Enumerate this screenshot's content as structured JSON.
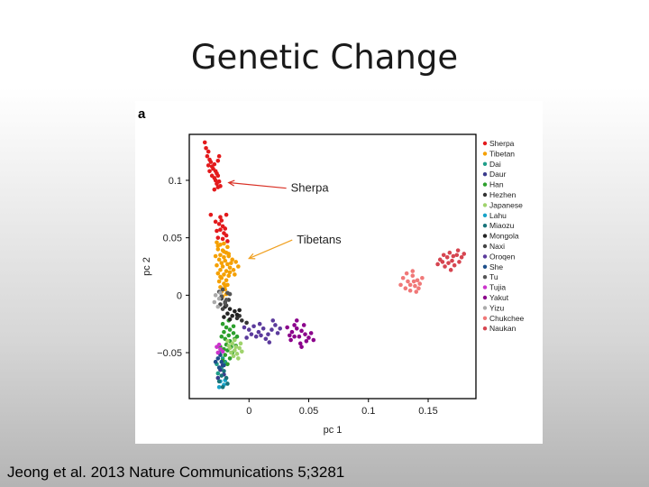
{
  "slide": {
    "title": "Genetic Change",
    "citation": "Jeong et al. 2013 Nature Communications 5;3281"
  },
  "chart_data": {
    "type": "scatter",
    "panel_label": "a",
    "xlabel": "pc 1",
    "ylabel": "pc 2",
    "xlim": [
      -0.05,
      0.19
    ],
    "ylim": [
      -0.09,
      0.14
    ],
    "xticks": [
      0,
      0.05,
      0.1,
      0.15
    ],
    "xtick_labels": [
      "0",
      "0.05",
      "0.1",
      "0.15"
    ],
    "yticks": [
      -0.05,
      0,
      0.05,
      0.1
    ],
    "ytick_labels": [
      "−0.05",
      "0",
      "0.05",
      "0.1"
    ],
    "grid": false,
    "legend_position": "right",
    "annotations": [
      {
        "text": "Sherpa",
        "at": [
          0.035,
          0.09
        ],
        "arrow_to": [
          -0.017,
          0.098
        ]
      },
      {
        "text": "Tibetans",
        "at": [
          0.04,
          0.045
        ],
        "arrow_to": [
          0.0,
          0.032
        ]
      }
    ],
    "series": [
      {
        "name": "Sherpa",
        "color": "#e31a1c",
        "points": [
          [
            -0.037,
            0.133
          ],
          [
            -0.036,
            0.128
          ],
          [
            -0.034,
            0.125
          ],
          [
            -0.035,
            0.121
          ],
          [
            -0.033,
            0.118
          ],
          [
            -0.032,
            0.116
          ],
          [
            -0.034,
            0.113
          ],
          [
            -0.031,
            0.112
          ],
          [
            -0.029,
            0.114
          ],
          [
            -0.03,
            0.11
          ],
          [
            -0.033,
            0.108
          ],
          [
            -0.028,
            0.108
          ],
          [
            -0.027,
            0.106
          ],
          [
            -0.031,
            0.104
          ],
          [
            -0.029,
            0.102
          ],
          [
            -0.026,
            0.104
          ],
          [
            -0.028,
            0.1
          ],
          [
            -0.025,
            0.099
          ],
          [
            -0.027,
            0.097
          ],
          [
            -0.026,
            0.094
          ],
          [
            -0.029,
            0.092
          ],
          [
            -0.024,
            0.095
          ],
          [
            -0.025,
            0.121
          ],
          [
            -0.026,
            0.117
          ],
          [
            -0.032,
            0.07
          ],
          [
            -0.028,
            0.064
          ],
          [
            -0.025,
            0.062
          ],
          [
            -0.023,
            0.065
          ],
          [
            -0.022,
            0.06
          ],
          [
            -0.019,
            0.07
          ],
          [
            -0.024,
            0.057
          ],
          [
            -0.021,
            0.054
          ],
          [
            -0.027,
            0.056
          ],
          [
            -0.019,
            0.052
          ],
          [
            -0.026,
            0.05
          ],
          [
            -0.022,
            0.049
          ],
          [
            -0.018,
            0.047
          ],
          [
            -0.024,
            0.068
          ],
          [
            -0.02,
            0.058
          ]
        ]
      },
      {
        "name": "Tibetan",
        "color": "#f5a000",
        "points": [
          [
            -0.027,
            0.046
          ],
          [
            -0.024,
            0.044
          ],
          [
            -0.021,
            0.045
          ],
          [
            -0.018,
            0.042
          ],
          [
            -0.026,
            0.04
          ],
          [
            -0.022,
            0.039
          ],
          [
            -0.019,
            0.037
          ],
          [
            -0.024,
            0.035
          ],
          [
            -0.028,
            0.034
          ],
          [
            -0.021,
            0.033
          ],
          [
            -0.017,
            0.034
          ],
          [
            -0.025,
            0.031
          ],
          [
            -0.02,
            0.03
          ],
          [
            -0.014,
            0.031
          ],
          [
            -0.011,
            0.029
          ],
          [
            -0.023,
            0.028
          ],
          [
            -0.018,
            0.027
          ],
          [
            -0.027,
            0.026
          ],
          [
            -0.022,
            0.025
          ],
          [
            -0.016,
            0.024
          ],
          [
            -0.024,
            0.022
          ],
          [
            -0.019,
            0.021
          ],
          [
            -0.013,
            0.022
          ],
          [
            -0.009,
            0.025
          ],
          [
            -0.026,
            0.019
          ],
          [
            -0.021,
            0.018
          ],
          [
            -0.017,
            0.017
          ],
          [
            -0.023,
            0.015
          ],
          [
            -0.019,
            0.013
          ],
          [
            -0.025,
            0.012
          ],
          [
            -0.021,
            0.01
          ],
          [
            -0.018,
            0.009
          ],
          [
            -0.024,
            0.007
          ],
          [
            -0.02,
            0.005
          ],
          [
            -0.023,
            0.003
          ],
          [
            -0.019,
            0.001
          ],
          [
            -0.022,
            -0.001
          ],
          [
            -0.017,
            0.036
          ],
          [
            -0.026,
            0.043
          ],
          [
            -0.015,
            0.028
          ],
          [
            -0.012,
            0.018
          ],
          [
            -0.024,
            0.016
          ],
          [
            -0.02,
            0.008
          ],
          [
            -0.021,
            0.038
          ],
          [
            -0.016,
            0.02
          ]
        ]
      },
      {
        "name": "Dai",
        "color": "#1f9e89",
        "points": [
          [
            -0.025,
            -0.05
          ],
          [
            -0.022,
            -0.055
          ],
          [
            -0.027,
            -0.06
          ],
          [
            -0.023,
            -0.063
          ],
          [
            -0.02,
            -0.058
          ],
          [
            -0.026,
            -0.068
          ]
        ]
      },
      {
        "name": "Daur",
        "color": "#3a3a8c",
        "points": [
          [
            -0.024,
            -0.065
          ],
          [
            -0.021,
            -0.069
          ],
          [
            -0.026,
            -0.072
          ],
          [
            -0.022,
            -0.061
          ]
        ]
      },
      {
        "name": "Han",
        "color": "#2ca02c",
        "points": [
          [
            -0.022,
            -0.025
          ],
          [
            -0.019,
            -0.028
          ],
          [
            -0.016,
            -0.03
          ],
          [
            -0.021,
            -0.032
          ],
          [
            -0.017,
            -0.035
          ],
          [
            -0.013,
            -0.033
          ],
          [
            -0.02,
            -0.038
          ],
          [
            -0.016,
            -0.04
          ],
          [
            -0.012,
            -0.038
          ],
          [
            -0.019,
            -0.043
          ],
          [
            -0.015,
            -0.045
          ],
          [
            -0.011,
            -0.044
          ],
          [
            -0.018,
            -0.048
          ],
          [
            -0.014,
            -0.05
          ],
          [
            -0.02,
            -0.052
          ],
          [
            -0.016,
            -0.055
          ],
          [
            -0.022,
            -0.057
          ],
          [
            -0.018,
            -0.06
          ],
          [
            -0.013,
            -0.027
          ],
          [
            -0.024,
            -0.045
          ],
          [
            -0.01,
            -0.036
          ],
          [
            -0.023,
            -0.036
          ],
          [
            -0.017,
            -0.022
          ],
          [
            -0.021,
            -0.047
          ]
        ]
      },
      {
        "name": "Hezhen",
        "color": "#333333",
        "points": [
          [
            -0.01,
            -0.02
          ],
          [
            -0.006,
            -0.022
          ],
          [
            -0.002,
            -0.024
          ],
          [
            -0.008,
            -0.018
          ]
        ]
      },
      {
        "name": "Japanese",
        "color": "#9fd36c",
        "points": [
          [
            -0.018,
            -0.04
          ],
          [
            -0.014,
            -0.042
          ],
          [
            -0.011,
            -0.045
          ],
          [
            -0.016,
            -0.046
          ],
          [
            -0.012,
            -0.048
          ],
          [
            -0.008,
            -0.046
          ],
          [
            -0.015,
            -0.05
          ],
          [
            -0.01,
            -0.051
          ],
          [
            -0.006,
            -0.049
          ],
          [
            -0.013,
            -0.053
          ],
          [
            -0.009,
            -0.055
          ],
          [
            -0.017,
            -0.044
          ],
          [
            -0.007,
            -0.042
          ],
          [
            -0.012,
            -0.039
          ]
        ]
      },
      {
        "name": "Lahu",
        "color": "#17a3c8",
        "points": [
          [
            -0.024,
            -0.075
          ],
          [
            -0.021,
            -0.078
          ],
          [
            -0.025,
            -0.08
          ],
          [
            -0.02,
            -0.074
          ]
        ]
      },
      {
        "name": "Miaozu",
        "color": "#18737a",
        "points": [
          [
            -0.023,
            -0.07
          ],
          [
            -0.019,
            -0.072
          ],
          [
            -0.025,
            -0.075
          ],
          [
            -0.021,
            -0.066
          ],
          [
            -0.018,
            -0.077
          ],
          [
            -0.022,
            -0.08
          ]
        ]
      },
      {
        "name": "Mongola",
        "color": "#222222",
        "points": [
          [
            -0.02,
            -0.01
          ],
          [
            -0.016,
            -0.012
          ],
          [
            -0.012,
            -0.014
          ],
          [
            -0.018,
            -0.016
          ],
          [
            -0.014,
            -0.018
          ],
          [
            -0.01,
            -0.017
          ],
          [
            -0.016,
            -0.021
          ],
          [
            -0.021,
            -0.019
          ],
          [
            -0.008,
            -0.013
          ]
        ]
      },
      {
        "name": "Naxi",
        "color": "#444444",
        "points": [
          [
            -0.023,
            -0.003
          ],
          [
            -0.02,
            -0.006
          ],
          [
            -0.024,
            -0.008
          ],
          [
            -0.019,
            -0.009
          ],
          [
            -0.022,
            -0.012
          ],
          [
            -0.017,
            -0.004
          ]
        ]
      },
      {
        "name": "Oroqen",
        "color": "#5b3a9c",
        "points": [
          [
            -0.004,
            -0.028
          ],
          [
            0.0,
            -0.03
          ],
          [
            0.004,
            -0.027
          ],
          [
            0.008,
            -0.032
          ],
          [
            0.012,
            -0.029
          ],
          [
            0.016,
            -0.034
          ],
          [
            0.019,
            -0.03
          ],
          [
            0.022,
            -0.026
          ],
          [
            0.006,
            -0.036
          ],
          [
            0.014,
            -0.038
          ],
          [
            0.01,
            -0.035
          ],
          [
            0.017,
            -0.041
          ],
          [
            0.002,
            -0.034
          ],
          [
            0.024,
            -0.033
          ],
          [
            0.026,
            -0.029
          ],
          [
            0.02,
            -0.022
          ],
          [
            -0.002,
            -0.037
          ],
          [
            0.009,
            -0.025
          ]
        ]
      },
      {
        "name": "She",
        "color": "#1d4f8a",
        "points": [
          [
            -0.026,
            -0.055
          ],
          [
            -0.023,
            -0.058
          ],
          [
            -0.025,
            -0.063
          ],
          [
            -0.021,
            -0.061
          ],
          [
            -0.028,
            -0.058
          ],
          [
            -0.024,
            -0.052
          ]
        ]
      },
      {
        "name": "Tu",
        "color": "#555555",
        "points": [
          [
            -0.022,
            0.005
          ],
          [
            -0.018,
            0.002
          ],
          [
            -0.023,
            -0.001
          ],
          [
            -0.019,
            -0.004
          ],
          [
            -0.016,
            0.001
          ],
          [
            -0.02,
            -0.007
          ],
          [
            -0.025,
            0.003
          ]
        ]
      },
      {
        "name": "Tujia",
        "color": "#cc33cc",
        "points": [
          [
            -0.027,
            -0.045
          ],
          [
            -0.024,
            -0.047
          ],
          [
            -0.026,
            -0.05
          ],
          [
            -0.022,
            -0.049
          ],
          [
            -0.025,
            -0.043
          ]
        ]
      },
      {
        "name": "Yakut",
        "color": "#8b008b",
        "points": [
          [
            0.032,
            -0.028
          ],
          [
            0.036,
            -0.032
          ],
          [
            0.04,
            -0.029
          ],
          [
            0.044,
            -0.031
          ],
          [
            0.038,
            -0.036
          ],
          [
            0.042,
            -0.036
          ],
          [
            0.047,
            -0.034
          ],
          [
            0.05,
            -0.037
          ],
          [
            0.054,
            -0.039
          ],
          [
            0.046,
            -0.026
          ],
          [
            0.04,
            -0.022
          ],
          [
            0.035,
            -0.039
          ],
          [
            0.043,
            -0.042
          ],
          [
            0.052,
            -0.033
          ],
          [
            0.048,
            -0.04
          ],
          [
            0.038,
            -0.026
          ],
          [
            0.044,
            -0.045
          ],
          [
            0.034,
            -0.035
          ]
        ]
      },
      {
        "name": "Yizu",
        "color": "#aaaaaa",
        "points": [
          [
            -0.028,
            0.0
          ],
          [
            -0.025,
            -0.003
          ],
          [
            -0.029,
            -0.006
          ],
          [
            -0.026,
            -0.01
          ],
          [
            -0.024,
            0.002
          ]
        ]
      },
      {
        "name": "Chukchee",
        "color": "#f07878",
        "points": [
          [
            0.129,
            0.015
          ],
          [
            0.133,
            0.012
          ],
          [
            0.137,
            0.017
          ],
          [
            0.141,
            0.013
          ],
          [
            0.135,
            0.009
          ],
          [
            0.139,
            0.008
          ],
          [
            0.143,
            0.01
          ],
          [
            0.131,
            0.006
          ],
          [
            0.135,
            0.004
          ],
          [
            0.14,
            0.003
          ],
          [
            0.127,
            0.009
          ],
          [
            0.145,
            0.015
          ],
          [
            0.137,
            0.021
          ],
          [
            0.132,
            0.019
          ],
          [
            0.142,
            0.006
          ],
          [
            0.138,
            0.012
          ]
        ]
      },
      {
        "name": "Naukan",
        "color": "#d64550",
        "points": [
          [
            0.162,
            0.029
          ],
          [
            0.166,
            0.033
          ],
          [
            0.17,
            0.03
          ],
          [
            0.174,
            0.035
          ],
          [
            0.168,
            0.037
          ],
          [
            0.164,
            0.025
          ],
          [
            0.172,
            0.026
          ],
          [
            0.178,
            0.033
          ],
          [
            0.16,
            0.031
          ],
          [
            0.175,
            0.039
          ],
          [
            0.167,
            0.028
          ],
          [
            0.171,
            0.034
          ],
          [
            0.158,
            0.027
          ],
          [
            0.176,
            0.029
          ],
          [
            0.163,
            0.035
          ],
          [
            0.18,
            0.036
          ],
          [
            0.169,
            0.022
          ]
        ]
      }
    ]
  }
}
